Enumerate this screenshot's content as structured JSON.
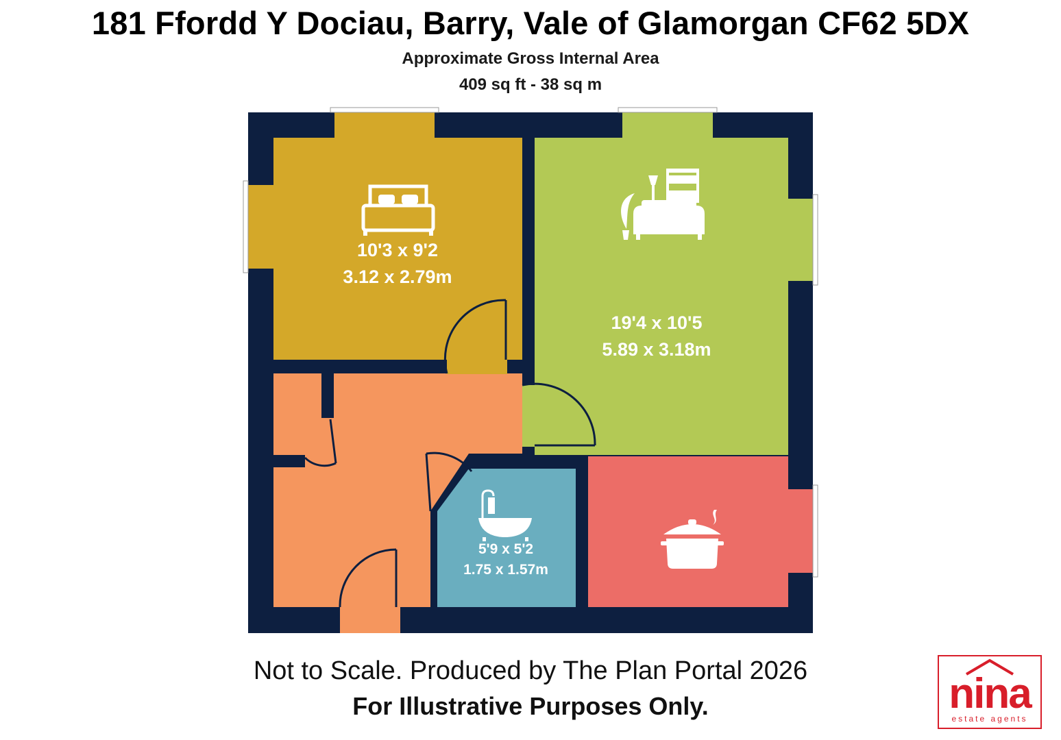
{
  "header": {
    "title": "181 Ffordd Y Dociau, Barry, Vale of Glamorgan CF62 5DX",
    "area_label": "Approximate Gross Internal Area",
    "area_value": "409 sq ft - 38 sq m"
  },
  "rooms": {
    "bedroom": {
      "dim_imperial": "10'3 x 9'2",
      "dim_metric": "3.12 x 2.79m",
      "color": "#d4a829",
      "icon": "bed-icon"
    },
    "living": {
      "dim_imperial": "19'4 x 10'5",
      "dim_metric": "5.89 x 3.18m",
      "color": "#b3c955",
      "icon": "sofa-lamp-plant-icon"
    },
    "bathroom": {
      "dim_imperial": "5'9 x 5'2",
      "dim_metric": "1.75 x 1.57m",
      "color": "#6aaebf",
      "icon": "bathtub-icon"
    },
    "kitchen": {
      "color": "#ec6d67",
      "icon": "cooking-pot-icon"
    },
    "hallway": {
      "color": "#f5965e"
    }
  },
  "wall_color": "#0d1f40",
  "footer": {
    "line1": "Not to Scale. Produced by The Plan Portal 2026",
    "line2": "For Illustrative Purposes Only."
  },
  "logo": {
    "word": "nina",
    "tagline": "estate agents",
    "color": "#d81e2a"
  }
}
